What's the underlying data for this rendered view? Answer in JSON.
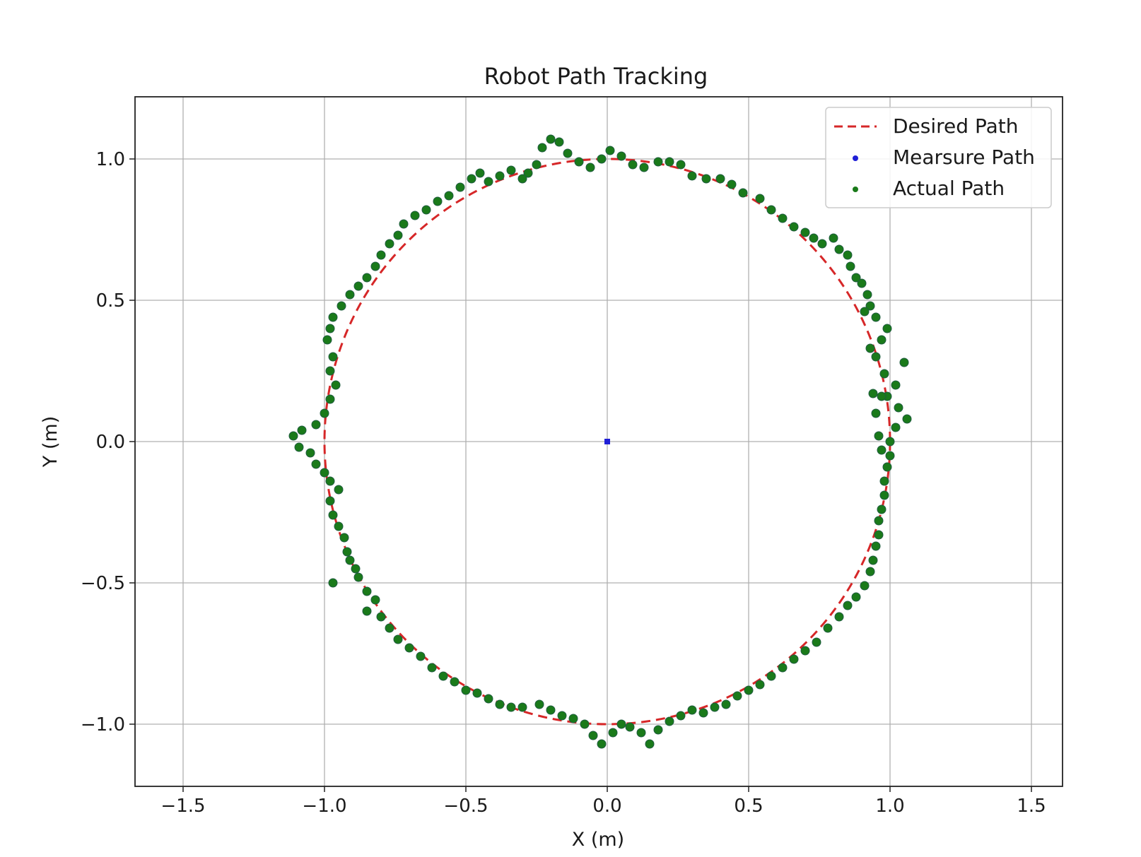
{
  "chart_data": {
    "type": "scatter",
    "title": "Robot Path Tracking",
    "xlabel": "X (m)",
    "ylabel": "Y (m)",
    "xlim": [
      -1.67,
      1.61
    ],
    "ylim": [
      -1.22,
      1.22
    ],
    "grid": true,
    "legend_position": "top-right",
    "x_ticks": [
      {
        "value": -1.5,
        "label": "−1.5"
      },
      {
        "value": -1.0,
        "label": "−1.0"
      },
      {
        "value": -0.5,
        "label": "−0.5"
      },
      {
        "value": 0.0,
        "label": "0.0"
      },
      {
        "value": 0.5,
        "label": "0.5"
      },
      {
        "value": 1.0,
        "label": "1.0"
      },
      {
        "value": 1.5,
        "label": "1.5"
      }
    ],
    "y_ticks": [
      {
        "value": 1.0,
        "label": "1.0"
      },
      {
        "value": 0.5,
        "label": "0.5"
      },
      {
        "value": 0.0,
        "label": "0.0"
      },
      {
        "value": -0.5,
        "label": "−0.5"
      },
      {
        "value": -1.0,
        "label": "−1.0"
      }
    ],
    "series": [
      {
        "name": "Desired Path",
        "kind": "dashed-line",
        "color": "#d62728",
        "shape": "circle",
        "center": [
          0.0,
          0.0
        ],
        "radius": 1.0
      },
      {
        "name": "Mearsure Path",
        "kind": "scatter",
        "color": "#1f1fd6",
        "points": [
          [
            0.0,
            0.0
          ]
        ]
      },
      {
        "name": "Actual Path",
        "kind": "scatter",
        "color": "#1a7a1a",
        "edge_color": "#1f5c3f",
        "points": [
          [
            1.0,
            0.0
          ],
          [
            1.02,
            0.05
          ],
          [
            1.06,
            0.08
          ],
          [
            1.03,
            0.12
          ],
          [
            0.99,
            0.16
          ],
          [
            1.02,
            0.2
          ],
          [
            1.05,
            0.28
          ],
          [
            0.98,
            0.24
          ],
          [
            0.95,
            0.3
          ],
          [
            0.97,
            0.36
          ],
          [
            0.99,
            0.4
          ],
          [
            0.95,
            0.44
          ],
          [
            0.93,
            0.48
          ],
          [
            0.92,
            0.52
          ],
          [
            0.9,
            0.56
          ],
          [
            0.88,
            0.58
          ],
          [
            0.86,
            0.62
          ],
          [
            0.85,
            0.66
          ],
          [
            0.82,
            0.68
          ],
          [
            0.8,
            0.72
          ],
          [
            0.76,
            0.7
          ],
          [
            0.73,
            0.72
          ],
          [
            0.7,
            0.74
          ],
          [
            0.66,
            0.76
          ],
          [
            0.62,
            0.79
          ],
          [
            0.58,
            0.82
          ],
          [
            0.54,
            0.86
          ],
          [
            0.48,
            0.88
          ],
          [
            0.44,
            0.91
          ],
          [
            0.4,
            0.93
          ],
          [
            0.35,
            0.93
          ],
          [
            0.3,
            0.94
          ],
          [
            0.26,
            0.98
          ],
          [
            0.22,
            0.99
          ],
          [
            0.18,
            0.99
          ],
          [
            0.13,
            0.97
          ],
          [
            0.09,
            0.98
          ],
          [
            0.05,
            1.01
          ],
          [
            0.01,
            1.03
          ],
          [
            -0.02,
            1.0
          ],
          [
            -0.06,
            0.97
          ],
          [
            -0.1,
            0.99
          ],
          [
            -0.14,
            1.02
          ],
          [
            -0.17,
            1.06
          ],
          [
            -0.2,
            1.07
          ],
          [
            -0.23,
            1.04
          ],
          [
            -0.25,
            0.98
          ],
          [
            -0.28,
            0.95
          ],
          [
            -0.3,
            0.93
          ],
          [
            -0.34,
            0.96
          ],
          [
            -0.38,
            0.94
          ],
          [
            -0.42,
            0.92
          ],
          [
            -0.45,
            0.95
          ],
          [
            -0.48,
            0.93
          ],
          [
            -0.52,
            0.9
          ],
          [
            -0.56,
            0.87
          ],
          [
            -0.6,
            0.85
          ],
          [
            -0.64,
            0.82
          ],
          [
            -0.68,
            0.8
          ],
          [
            -0.72,
            0.77
          ],
          [
            -0.74,
            0.73
          ],
          [
            -0.77,
            0.7
          ],
          [
            -0.8,
            0.66
          ],
          [
            -0.82,
            0.62
          ],
          [
            -0.85,
            0.58
          ],
          [
            -0.88,
            0.55
          ],
          [
            -0.91,
            0.52
          ],
          [
            -0.94,
            0.48
          ],
          [
            -0.97,
            0.44
          ],
          [
            -0.98,
            0.4
          ],
          [
            -0.99,
            0.36
          ],
          [
            -0.97,
            0.3
          ],
          [
            -0.98,
            0.25
          ],
          [
            -0.96,
            0.2
          ],
          [
            -0.98,
            0.15
          ],
          [
            -1.0,
            0.1
          ],
          [
            -1.03,
            0.06
          ],
          [
            -1.08,
            0.04
          ],
          [
            -1.11,
            0.02
          ],
          [
            -1.09,
            -0.02
          ],
          [
            -1.05,
            -0.04
          ],
          [
            -1.03,
            -0.08
          ],
          [
            -1.0,
            -0.11
          ],
          [
            -0.98,
            -0.14
          ],
          [
            -0.95,
            -0.17
          ],
          [
            -0.98,
            -0.21
          ],
          [
            -0.97,
            -0.26
          ],
          [
            -0.95,
            -0.3
          ],
          [
            -0.93,
            -0.34
          ],
          [
            -0.92,
            -0.39
          ],
          [
            -0.91,
            -0.42
          ],
          [
            -0.89,
            -0.45
          ],
          [
            -0.88,
            -0.48
          ],
          [
            -0.97,
            -0.5
          ],
          [
            -0.85,
            -0.53
          ],
          [
            -0.82,
            -0.56
          ],
          [
            -0.85,
            -0.6
          ],
          [
            -0.8,
            -0.62
          ],
          [
            -0.77,
            -0.66
          ],
          [
            -0.74,
            -0.7
          ],
          [
            -0.7,
            -0.73
          ],
          [
            -0.66,
            -0.76
          ],
          [
            -0.62,
            -0.8
          ],
          [
            -0.58,
            -0.83
          ],
          [
            -0.54,
            -0.85
          ],
          [
            -0.5,
            -0.88
          ],
          [
            -0.46,
            -0.89
          ],
          [
            -0.42,
            -0.91
          ],
          [
            -0.38,
            -0.93
          ],
          [
            -0.34,
            -0.94
          ],
          [
            -0.3,
            -0.94
          ],
          [
            -0.24,
            -0.93
          ],
          [
            -0.2,
            -0.95
          ],
          [
            -0.16,
            -0.97
          ],
          [
            -0.12,
            -0.98
          ],
          [
            -0.08,
            -1.0
          ],
          [
            -0.05,
            -1.04
          ],
          [
            -0.02,
            -1.07
          ],
          [
            0.02,
            -1.03
          ],
          [
            0.05,
            -1.0
          ],
          [
            0.08,
            -1.01
          ],
          [
            0.12,
            -1.03
          ],
          [
            0.15,
            -1.07
          ],
          [
            0.18,
            -1.02
          ],
          [
            0.22,
            -0.99
          ],
          [
            0.26,
            -0.97
          ],
          [
            0.3,
            -0.95
          ],
          [
            0.34,
            -0.96
          ],
          [
            0.38,
            -0.94
          ],
          [
            0.42,
            -0.93
          ],
          [
            0.46,
            -0.9
          ],
          [
            0.5,
            -0.88
          ],
          [
            0.54,
            -0.86
          ],
          [
            0.58,
            -0.83
          ],
          [
            0.62,
            -0.8
          ],
          [
            0.66,
            -0.77
          ],
          [
            0.7,
            -0.74
          ],
          [
            0.74,
            -0.71
          ],
          [
            0.78,
            -0.66
          ],
          [
            0.82,
            -0.62
          ],
          [
            0.85,
            -0.58
          ],
          [
            0.88,
            -0.55
          ],
          [
            0.91,
            -0.51
          ],
          [
            0.93,
            -0.46
          ],
          [
            0.94,
            -0.42
          ],
          [
            0.95,
            -0.37
          ],
          [
            0.96,
            -0.33
          ],
          [
            0.96,
            -0.28
          ],
          [
            0.97,
            -0.24
          ],
          [
            0.98,
            -0.19
          ],
          [
            0.98,
            -0.14
          ],
          [
            0.99,
            -0.09
          ],
          [
            1.0,
            -0.05
          ],
          [
            0.97,
            -0.03
          ],
          [
            0.96,
            0.02
          ],
          [
            0.95,
            0.1
          ],
          [
            0.97,
            0.16
          ],
          [
            0.94,
            0.17
          ],
          [
            0.93,
            0.33
          ],
          [
            0.91,
            0.46
          ]
        ]
      }
    ]
  }
}
